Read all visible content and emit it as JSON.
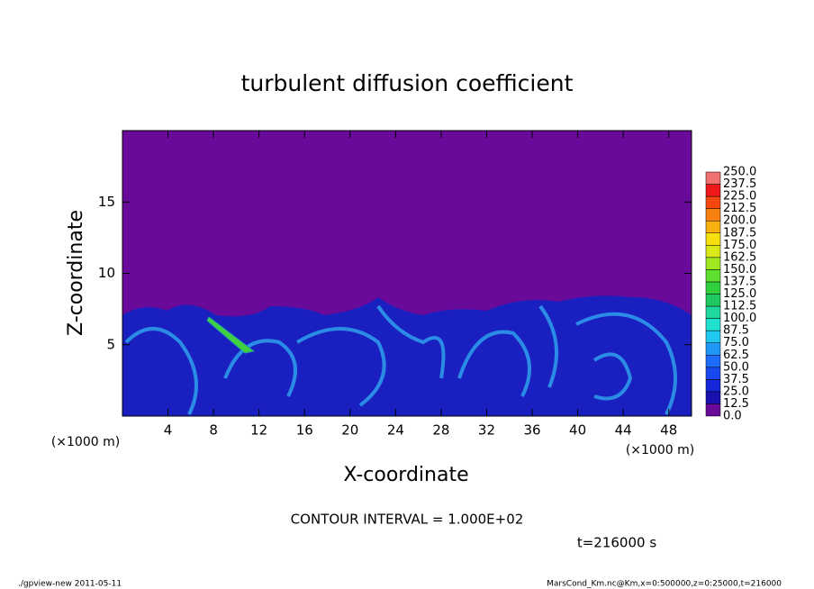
{
  "chart_data": {
    "type": "contour",
    "title": "turbulent diffusion coefficient",
    "x_label": "X-coordinate",
    "y_label": "Z-coordinate",
    "x_unit": "(×1000 m)",
    "x_unit_right": "(×1000 m)",
    "xlim": [
      0,
      50
    ],
    "ylim": [
      0,
      20
    ],
    "xticks": [
      4,
      8,
      12,
      16,
      20,
      24,
      28,
      32,
      36,
      40,
      44,
      48
    ],
    "yticks": [
      5,
      10,
      15
    ],
    "background_color": "#6a0a9a",
    "colorbar": {
      "levels": [
        {
          "value": 0,
          "label": "0.0"
        },
        {
          "value": 12.5,
          "label": "12.5"
        },
        {
          "value": 25,
          "label": "25.0"
        },
        {
          "value": 37.5,
          "label": "37.5"
        },
        {
          "value": 50,
          "label": "50.0"
        },
        {
          "value": 62.5,
          "label": "62.5"
        },
        {
          "value": 75,
          "label": "75.0"
        },
        {
          "value": 87.5,
          "label": "87.5"
        },
        {
          "value": 100,
          "label": "100.0"
        },
        {
          "value": 112.5,
          "label": "112.5"
        },
        {
          "value": 125,
          "label": "125.0"
        },
        {
          "value": 137.5,
          "label": "137.5"
        },
        {
          "value": 150,
          "label": "150.0"
        },
        {
          "value": 162.5,
          "label": "162.5"
        },
        {
          "value": 175,
          "label": "175.0"
        },
        {
          "value": 187.5,
          "label": "187.5"
        },
        {
          "value": 200,
          "label": "200.0"
        },
        {
          "value": 212.5,
          "label": "212.5"
        },
        {
          "value": 225,
          "label": "225.0"
        },
        {
          "value": 237.5,
          "label": "237.5"
        },
        {
          "value": 250,
          "label": "250.0"
        }
      ],
      "colors": [
        "#6a0a9a",
        "#1a10b0",
        "#1428d8",
        "#1a48f0",
        "#1e6cf8",
        "#2096f8",
        "#20c8f0",
        "#20e0d0",
        "#20d8a0",
        "#20c860",
        "#30d040",
        "#60e030",
        "#a0e820",
        "#d8e818",
        "#f8e010",
        "#f8b010",
        "#f88010",
        "#f84810",
        "#f01818",
        "#f07070"
      ]
    },
    "annotation": "CONTOUR INTERVAL = 1.000E+02",
    "time_label": "t=216000 s",
    "footer_left": "./gpview-new   2011-05-11",
    "footer_right": "MarsCond_Km.nc@Km,x=0:500000,z=0:25000,t=216000"
  }
}
